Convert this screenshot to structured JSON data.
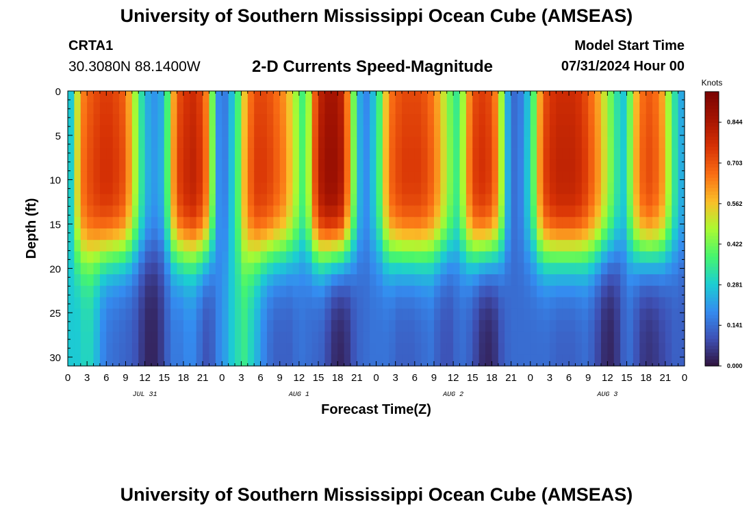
{
  "header": {
    "title": "University of Southern Mississippi Ocean Cube (AMSEAS)",
    "station": "CRTA1",
    "coords": "30.3080N  88.1400W",
    "subtitle": "2-D Currents Speed-Magnitude",
    "model_start_label": "Model Start Time",
    "model_start_value": "07/31/2024 Hour 00"
  },
  "footer": {
    "title": "University of Southern Mississippi Ocean Cube (AMSEAS)"
  },
  "chart_data": {
    "type": "heatmap",
    "xlabel": "Forecast Time(Z)",
    "ylabel": "Depth (ft)",
    "x_tick_labels": [
      "0",
      "3",
      "6",
      "9",
      "12",
      "15",
      "18",
      "21",
      "0",
      "3",
      "6",
      "9",
      "12",
      "15",
      "18",
      "21",
      "0",
      "3",
      "6",
      "9",
      "12",
      "15",
      "18",
      "21",
      "0",
      "3",
      "6",
      "9",
      "12",
      "15",
      "18",
      "21",
      "0"
    ],
    "date_labels": [
      "JUL 31",
      "AUG 1",
      "AUG 2",
      "AUG 3"
    ],
    "xlim_hours": [
      0,
      96
    ],
    "y_ticks": [
      0,
      5,
      10,
      15,
      20,
      25,
      30
    ],
    "ylim": [
      0,
      31
    ],
    "colorbar": {
      "unit": "Knots",
      "range": [
        0,
        0.95
      ],
      "tick_values": [
        0.0,
        0.141,
        0.281,
        0.422,
        0.562,
        0.703,
        0.844
      ],
      "tick_labels": [
        "0.000",
        "0.141",
        "0.281",
        "0.422",
        "0.562",
        "0.703",
        "0.844"
      ]
    },
    "time_steps": 96,
    "depth_levels": 24,
    "surface_speed_profile_knots": [
      0.3,
      0.55,
      0.7,
      0.75,
      0.78,
      0.8,
      0.8,
      0.78,
      0.75,
      0.65,
      0.5,
      0.35,
      0.25,
      0.22,
      0.25,
      0.4,
      0.65,
      0.78,
      0.82,
      0.84,
      0.8,
      0.7,
      0.45,
      0.2,
      0.18,
      0.28,
      0.4,
      0.6,
      0.72,
      0.78,
      0.78,
      0.76,
      0.72,
      0.68,
      0.6,
      0.5,
      0.4,
      0.5,
      0.75,
      0.88,
      0.92,
      0.92,
      0.88,
      0.7,
      0.45,
      0.25,
      0.2,
      0.28,
      0.4,
      0.6,
      0.72,
      0.76,
      0.78,
      0.78,
      0.78,
      0.76,
      0.72,
      0.65,
      0.55,
      0.45,
      0.38,
      0.5,
      0.68,
      0.78,
      0.8,
      0.78,
      0.7,
      0.5,
      0.25,
      0.15,
      0.18,
      0.28,
      0.42,
      0.65,
      0.78,
      0.82,
      0.84,
      0.84,
      0.84,
      0.82,
      0.78,
      0.72,
      0.65,
      0.55,
      0.45,
      0.35,
      0.3,
      0.45,
      0.62,
      0.72,
      0.75,
      0.72,
      0.65,
      0.5,
      0.35,
      0.25
    ],
    "deep_speed_profile_knots": [
      0.28,
      0.28,
      0.3,
      0.3,
      0.25,
      0.18,
      0.15,
      0.14,
      0.13,
      0.12,
      0.1,
      0.06,
      0.03,
      0.03,
      0.06,
      0.12,
      0.16,
      0.16,
      0.18,
      0.18,
      0.14,
      0.1,
      0.12,
      0.18,
      0.22,
      0.28,
      0.32,
      0.35,
      0.3,
      0.24,
      0.18,
      0.14,
      0.12,
      0.12,
      0.12,
      0.14,
      0.15,
      0.14,
      0.13,
      0.12,
      0.08,
      0.04,
      0.03,
      0.05,
      0.1,
      0.13,
      0.14,
      0.15,
      0.15,
      0.15,
      0.14,
      0.12,
      0.12,
      0.12,
      0.13,
      0.14,
      0.15,
      0.12,
      0.1,
      0.1,
      0.13,
      0.14,
      0.12,
      0.08,
      0.04,
      0.03,
      0.05,
      0.1,
      0.13,
      0.14,
      0.14,
      0.14,
      0.14,
      0.14,
      0.14,
      0.13,
      0.12,
      0.12,
      0.12,
      0.13,
      0.14,
      0.12,
      0.08,
      0.04,
      0.03,
      0.06,
      0.12,
      0.14,
      0.1,
      0.06,
      0.05,
      0.06,
      0.08,
      0.1,
      0.12,
      0.12
    ]
  }
}
